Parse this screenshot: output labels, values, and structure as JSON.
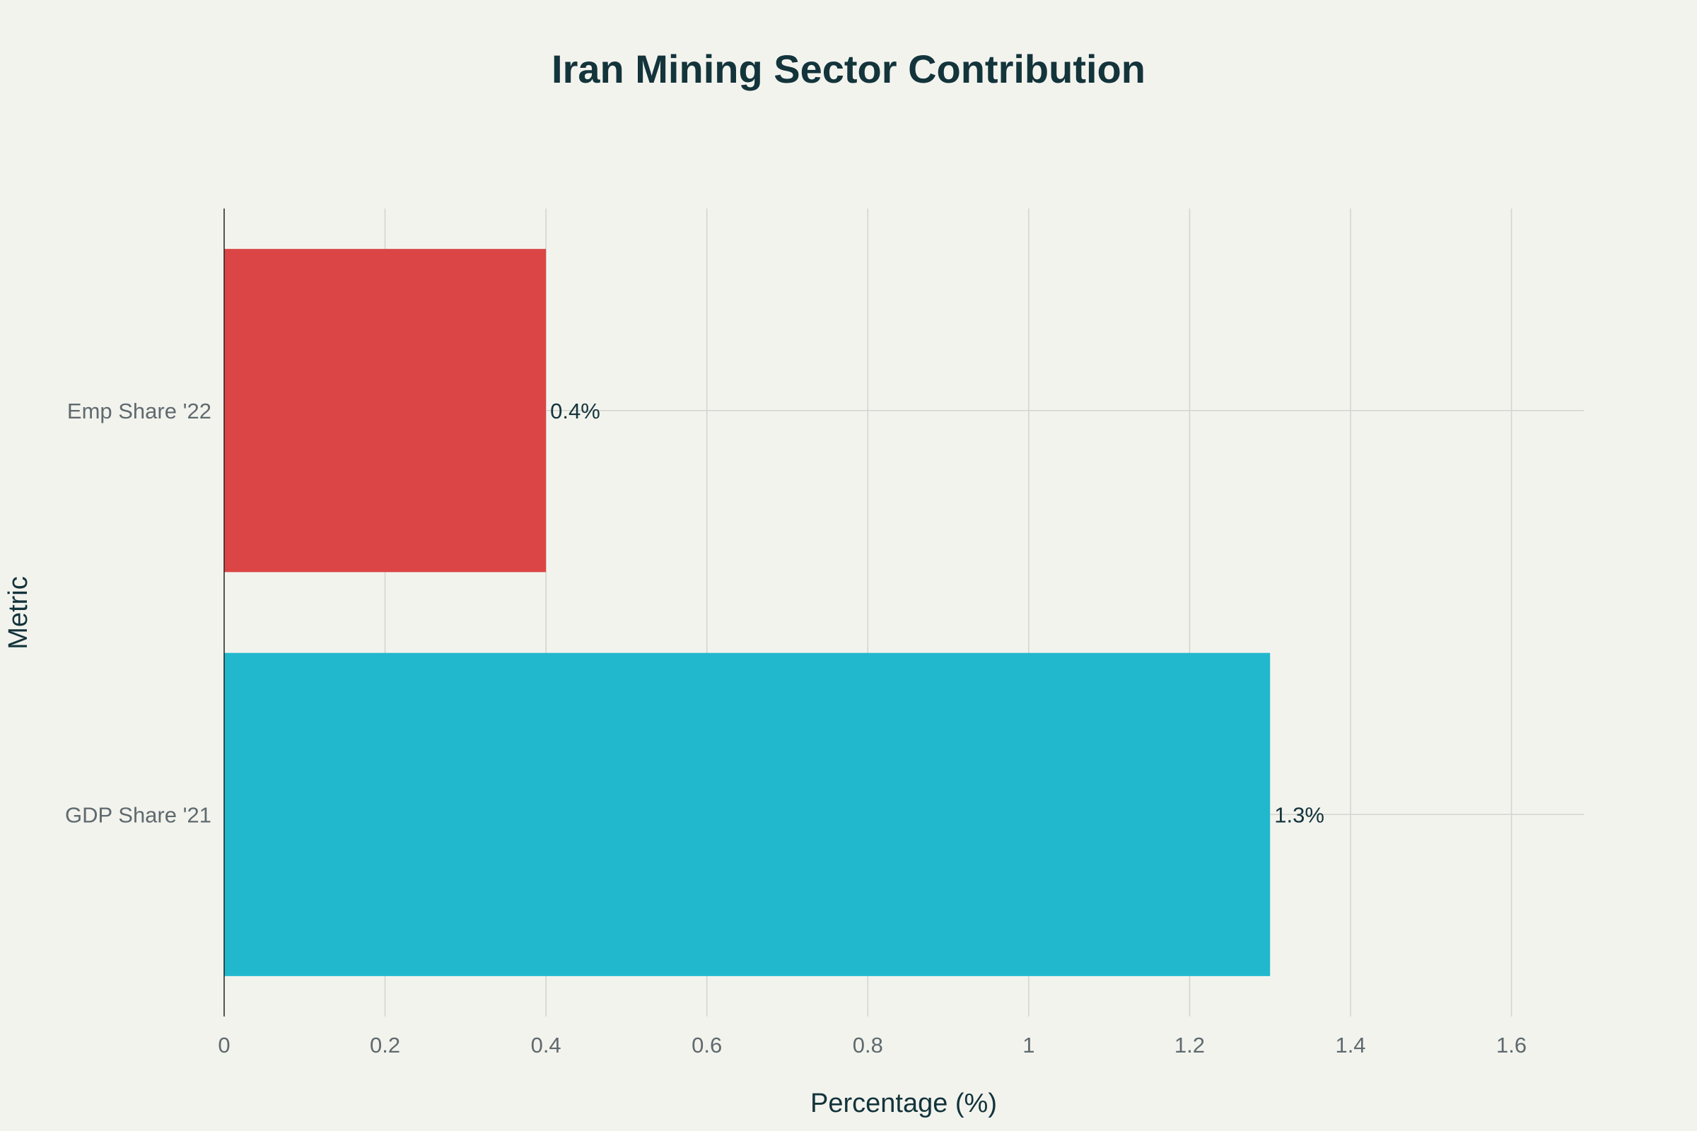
{
  "chart_data": {
    "type": "bar",
    "orientation": "horizontal",
    "title": "Iran Mining Sector Contribution",
    "xlabel": "Percentage (%)",
    "ylabel": "Metric",
    "xlim": [
      0,
      1.69
    ],
    "x_ticks": [
      0,
      0.2,
      0.4,
      0.6,
      0.8,
      1,
      1.2,
      1.4,
      1.6
    ],
    "x_tick_labels": [
      "0",
      "0.2",
      "0.4",
      "0.6",
      "0.8",
      "1",
      "1.2",
      "1.4",
      "1.6"
    ],
    "grid": true,
    "legend": "none",
    "categories": [
      "Emp Share '22",
      "GDP Share '21"
    ],
    "values": [
      0.4,
      1.3
    ],
    "data_labels": [
      "0.4%",
      "1.3%"
    ],
    "colors": [
      "#db4545",
      "#21b8cd"
    ]
  }
}
